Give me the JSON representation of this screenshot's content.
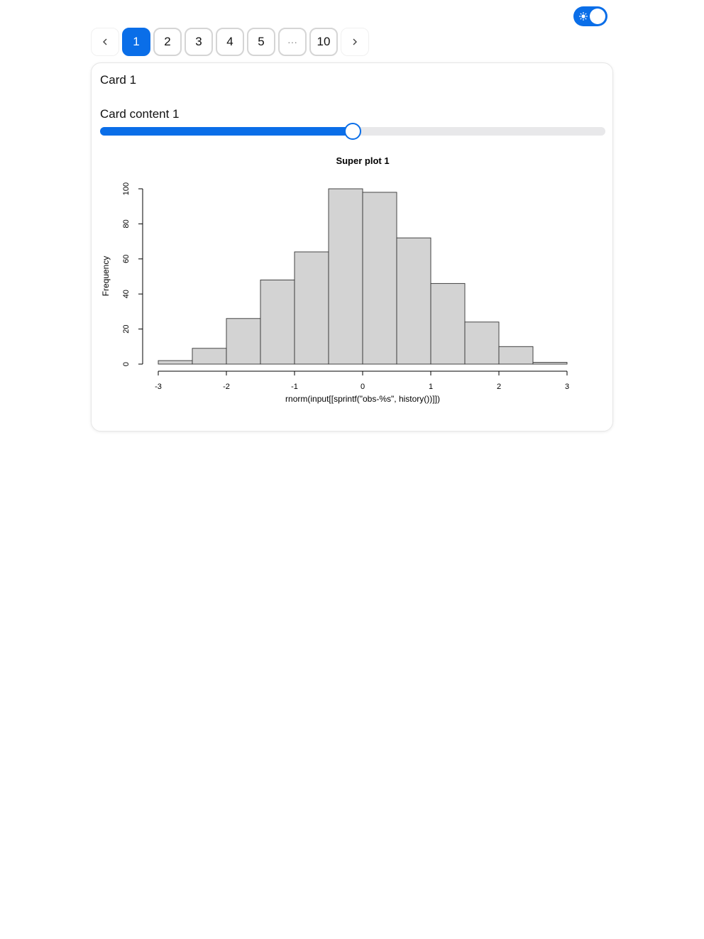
{
  "theme_toggle": {
    "icon": "sun-icon",
    "state": "on",
    "accent": "#0a6ee8"
  },
  "pagination": {
    "prev_icon": "chevron-left-icon",
    "next_icon": "chevron-right-icon",
    "pages": [
      "1",
      "2",
      "3",
      "4",
      "5",
      "···",
      "10"
    ],
    "active": "1"
  },
  "card": {
    "title": "Card 1",
    "content": "Card content 1",
    "slider": {
      "fraction": 0.5
    }
  },
  "chart_data": {
    "type": "bar",
    "title": "Super plot 1",
    "xlabel": "rnorm(input[[sprintf(\"obs-%s\", history())]])",
    "ylabel": "Frequency",
    "bins": [
      {
        "x0": -3.0,
        "x1": -2.5,
        "count": 2
      },
      {
        "x0": -2.5,
        "x1": -2.0,
        "count": 9
      },
      {
        "x0": -2.0,
        "x1": -1.5,
        "count": 26
      },
      {
        "x0": -1.5,
        "x1": -1.0,
        "count": 48
      },
      {
        "x0": -1.0,
        "x1": -0.5,
        "count": 64
      },
      {
        "x0": -0.5,
        "x1": 0.0,
        "count": 100
      },
      {
        "x0": 0.0,
        "x1": 0.5,
        "count": 98
      },
      {
        "x0": 0.5,
        "x1": 1.0,
        "count": 72
      },
      {
        "x0": 1.0,
        "x1": 1.5,
        "count": 46
      },
      {
        "x0": 1.5,
        "x1": 2.0,
        "count": 24
      },
      {
        "x0": 2.0,
        "x1": 2.5,
        "count": 10
      },
      {
        "x0": 2.5,
        "x1": 3.0,
        "count": 1
      }
    ],
    "xlim": [
      -3,
      3
    ],
    "ylim": [
      0,
      100
    ],
    "xticks": [
      -3,
      -2,
      -1,
      0,
      1,
      2,
      3
    ],
    "yticks": [
      0,
      20,
      40,
      60,
      80,
      100
    ],
    "bar_color": "#d3d3d3",
    "grid": false
  }
}
